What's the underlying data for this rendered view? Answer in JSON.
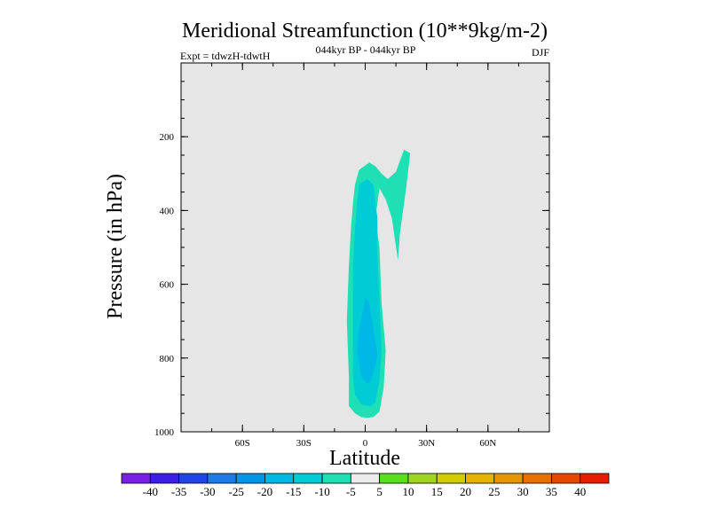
{
  "chart_data": {
    "type": "heatmap",
    "title": "Meridional Streamfunction (10**9kg/m-2)",
    "subtitle": "044kyr BP - 044kyr BP",
    "left_label": "Expt = tdwzH-tdwtH",
    "right_label": "DJF",
    "xlabel": "Latitude",
    "ylabel": "Pressure (in hPa)",
    "xlim": [
      -90,
      90
    ],
    "ylim": [
      1000,
      0
    ],
    "x_ticks": [
      {
        "value": -60,
        "label": "60S"
      },
      {
        "value": -30,
        "label": "30S"
      },
      {
        "value": 0,
        "label": "0"
      },
      {
        "value": 30,
        "label": "30N"
      },
      {
        "value": 60,
        "label": "60N"
      }
    ],
    "y_ticks": [
      {
        "value": 200,
        "label": "200"
      },
      {
        "value": 400,
        "label": "400"
      },
      {
        "value": 600,
        "label": "600"
      },
      {
        "value": 800,
        "label": "800"
      },
      {
        "value": 1000,
        "label": "1000"
      }
    ],
    "background_color": "#e6e6e6",
    "contours": [
      {
        "name": "(-10,-5] tongue",
        "level": -7.5,
        "color": "#1ee0b4",
        "points": [
          [
            -5,
            330
          ],
          [
            -3,
            290
          ],
          [
            2,
            270
          ],
          [
            5,
            280
          ],
          [
            8,
            300
          ],
          [
            11,
            315
          ],
          [
            15,
            295
          ],
          [
            19,
            235
          ],
          [
            22,
            245
          ],
          [
            20,
            340
          ],
          [
            17,
            460
          ],
          [
            16,
            535
          ],
          [
            13,
            420
          ],
          [
            10,
            370
          ],
          [
            7,
            340
          ],
          [
            5,
            420
          ],
          [
            7,
            500
          ],
          [
            8,
            650
          ],
          [
            10,
            780
          ],
          [
            9,
            880
          ],
          [
            7,
            945
          ],
          [
            4,
            960
          ],
          [
            1,
            962
          ],
          [
            -2,
            960
          ],
          [
            -5,
            950
          ],
          [
            -8,
            930
          ],
          [
            -8,
            850
          ],
          [
            -9,
            700
          ],
          [
            -8,
            550
          ],
          [
            -7,
            450
          ],
          [
            -6,
            380
          ]
        ]
      },
      {
        "name": "(-15,-10] core",
        "level": -12.5,
        "color": "#00ccd6",
        "points": [
          [
            -3,
            330
          ],
          [
            1,
            315
          ],
          [
            4,
            330
          ],
          [
            5,
            380
          ],
          [
            6,
            420
          ],
          [
            6,
            520
          ],
          [
            7,
            650
          ],
          [
            8,
            780
          ],
          [
            7,
            860
          ],
          [
            5,
            920
          ],
          [
            3,
            930
          ],
          [
            1,
            930
          ],
          [
            -2,
            925
          ],
          [
            -5,
            900
          ],
          [
            -6,
            850
          ],
          [
            -6,
            700
          ],
          [
            -6,
            550
          ],
          [
            -5,
            450
          ],
          [
            -4,
            380
          ]
        ]
      },
      {
        "name": "(-20,-15] center",
        "level": -17.5,
        "color": "#00b8e6",
        "points": [
          [
            0,
            635
          ],
          [
            2,
            650
          ],
          [
            4,
            720
          ],
          [
            6,
            790
          ],
          [
            5,
            820
          ],
          [
            3,
            860
          ],
          [
            1,
            870
          ],
          [
            -2,
            850
          ],
          [
            -4,
            780
          ],
          [
            -3,
            720
          ],
          [
            -1,
            670
          ]
        ]
      }
    ],
    "colorbar": {
      "levels": [
        -40,
        -35,
        -30,
        -25,
        -20,
        -15,
        -10,
        -5,
        5,
        10,
        15,
        20,
        25,
        30,
        35,
        40
      ],
      "colors": [
        "#7a1ee6",
        "#3c1ee6",
        "#1e46e6",
        "#1e7ae6",
        "#0095e6",
        "#00b8e6",
        "#00ccd6",
        "#1ee0b4",
        "#ebebeb",
        "#58e01e",
        "#9ed61e",
        "#d2cc00",
        "#e6b400",
        "#e69600",
        "#e67000",
        "#e64800",
        "#e61e00"
      ]
    }
  }
}
